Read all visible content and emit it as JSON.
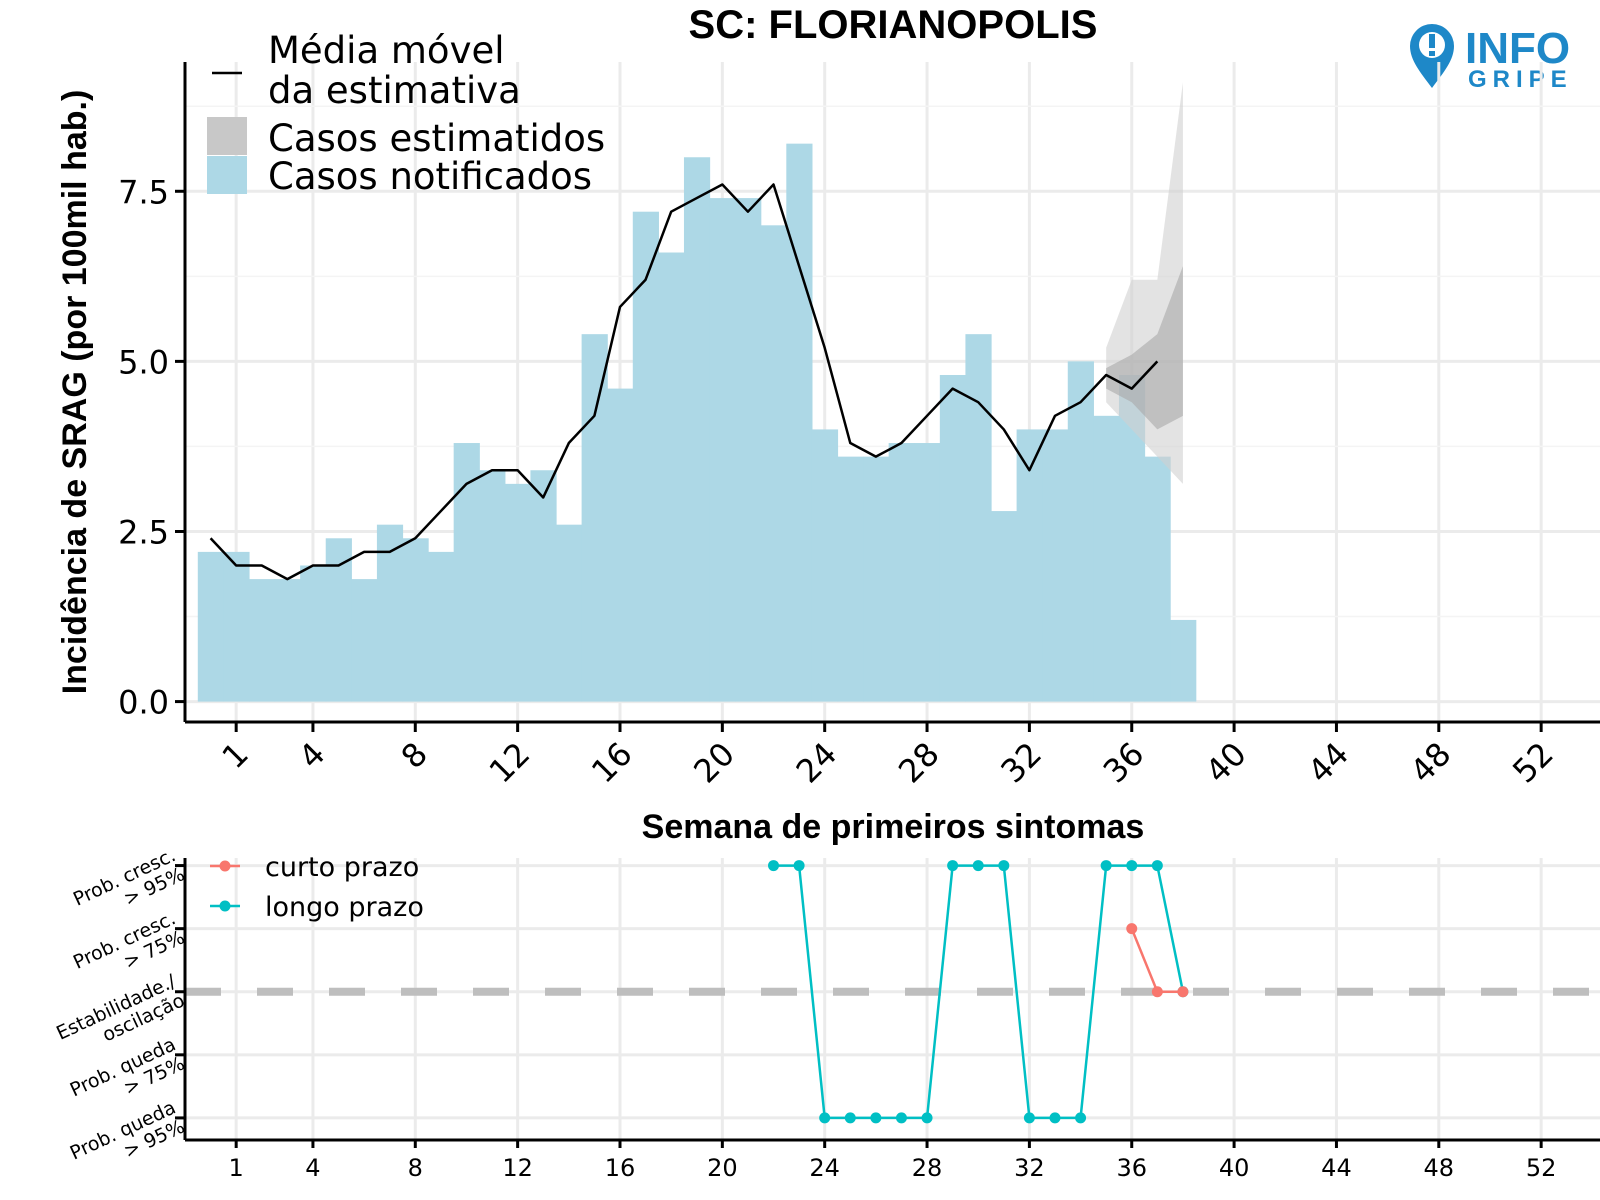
{
  "logo": {
    "line1": "INFO",
    "line2": "GRIPE",
    "color": "#1e88c8"
  },
  "chart_data": [
    {
      "type": "bar",
      "title": "SC: FLORIANOPOLIS",
      "xlabel": "Semana de primeiros sintomas",
      "ylabel": "Incidência de SRAG (por 100mil hab.)",
      "ylim": [
        -0.3,
        9.4
      ],
      "xlim": [
        -1.0,
        54.3
      ],
      "yticks": [
        0.0,
        2.5,
        5.0,
        7.5
      ],
      "ytick_labels": [
        "0.0",
        "2.5",
        "5.0",
        "7.5"
      ],
      "xticks": [
        1,
        4,
        8,
        12,
        16,
        20,
        24,
        28,
        32,
        36,
        40,
        44,
        48,
        52
      ],
      "grid": true,
      "legend_position": "top-left",
      "legend": [
        "Média móvel\nda estimativa",
        "Casos estimatidos",
        "Casos notificados"
      ],
      "colors": {
        "notified": "#add8e6",
        "estimated": "#c8c8c8",
        "moving_average": "#000000"
      },
      "weeks": [
        0,
        1,
        2,
        3,
        4,
        5,
        6,
        7,
        8,
        9,
        10,
        11,
        12,
        13,
        14,
        15,
        16,
        17,
        18,
        19,
        20,
        21,
        22,
        23,
        24,
        25,
        26,
        27,
        28,
        29,
        30,
        31,
        32,
        33,
        34,
        35,
        36,
        37,
        38
      ],
      "notified_cases": [
        2.2,
        2.2,
        1.8,
        1.8,
        2.0,
        2.4,
        1.8,
        2.6,
        2.4,
        2.2,
        3.8,
        3.4,
        3.2,
        3.4,
        2.6,
        5.4,
        4.6,
        7.2,
        6.6,
        8.0,
        7.4,
        7.4,
        7.0,
        8.2,
        4.0,
        3.6,
        3.6,
        3.8,
        3.8,
        4.8,
        5.4,
        2.8,
        4.0,
        4.0,
        5.0,
        4.2,
        4.8,
        3.6,
        1.2
      ],
      "moving_average": [
        2.4,
        2.0,
        2.0,
        1.8,
        2.0,
        2.0,
        2.2,
        2.2,
        2.4,
        2.8,
        3.2,
        3.4,
        3.4,
        3.0,
        3.8,
        4.2,
        5.8,
        6.2,
        7.2,
        7.4,
        7.6,
        7.2,
        7.6,
        6.4,
        5.2,
        3.8,
        3.6,
        3.8,
        4.2,
        4.6,
        4.4,
        4.0,
        3.4,
        4.2,
        4.4,
        4.8,
        4.6,
        5.0
      ],
      "estimate_band_weeks": [
        35,
        36,
        37,
        38
      ],
      "estimate_band_outer_low": [
        4.4,
        4.0,
        3.6,
        3.2
      ],
      "estimate_band_outer_high": [
        5.2,
        6.2,
        6.2,
        9.1
      ],
      "estimate_band_inner_low": [
        4.6,
        4.4,
        4.0,
        4.2
      ],
      "estimate_band_inner_high": [
        4.9,
        5.1,
        5.4,
        6.4
      ]
    },
    {
      "type": "line",
      "xlim": [
        -1.0,
        54.3
      ],
      "xticks": [
        1,
        4,
        8,
        12,
        16,
        20,
        24,
        28,
        32,
        36,
        40,
        44,
        48,
        52
      ],
      "categories": [
        "Prob. queda\n> 95%",
        "Prob. queda\n> 75%",
        "Estabilidade./\noscilação",
        "Prob. cresc.\n> 75%",
        "Prob. cresc.\n> 95%"
      ],
      "levels": [
        -2,
        -1,
        0,
        1,
        2
      ],
      "reference_level": 0,
      "grid": true,
      "legend_position": "top-left",
      "series": [
        {
          "name": "curto prazo",
          "color": "#f8766d",
          "x": [
            36,
            37,
            38
          ],
          "y": [
            1,
            0,
            0
          ]
        },
        {
          "name": "longo prazo",
          "color": "#00bfc4",
          "x": [
            22,
            23,
            24,
            25,
            26,
            27,
            28,
            29,
            30,
            31,
            32,
            33,
            34,
            35,
            36,
            37,
            38
          ],
          "y": [
            2,
            2,
            -2,
            -2,
            -2,
            -2,
            -2,
            2,
            2,
            2,
            -2,
            -2,
            -2,
            2,
            2,
            2,
            0
          ]
        }
      ]
    }
  ]
}
